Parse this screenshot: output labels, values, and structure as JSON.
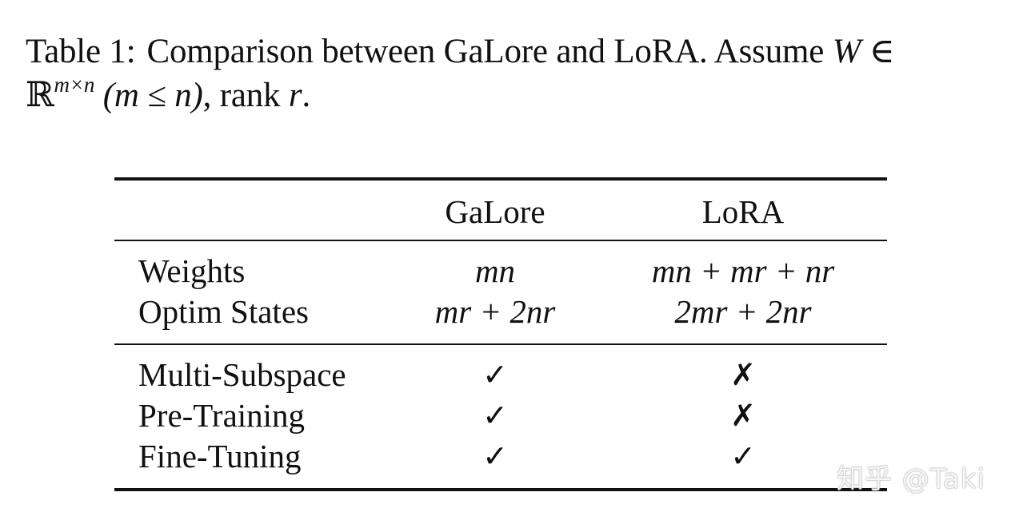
{
  "caption": {
    "label": "Table 1:",
    "text": "Comparison between GaLore and LoRA. Assume",
    "matrix_var": "W",
    "in_symbol": "∈",
    "real_symbol": "ℝ",
    "dims": "m×n",
    "constraint": "(m ≤ n)",
    "rank_text": ", rank",
    "rank_var": "r",
    "period": "."
  },
  "table": {
    "headers": [
      "",
      "GaLore",
      "LoRA"
    ],
    "group1": [
      {
        "label": "Weights",
        "galore": "mn",
        "lora": "mn + mr + nr"
      },
      {
        "label": "Optim States",
        "galore": "mr + 2nr",
        "lora": "2mr + 2nr"
      }
    ],
    "group2": [
      {
        "label": "Multi-Subspace",
        "galore": "✓",
        "lora": "✗"
      },
      {
        "label": "Pre-Training",
        "galore": "✓",
        "lora": "✗"
      },
      {
        "label": "Fine-Tuning",
        "galore": "✓",
        "lora": "✓"
      }
    ]
  },
  "watermark": "知乎 @Taki"
}
